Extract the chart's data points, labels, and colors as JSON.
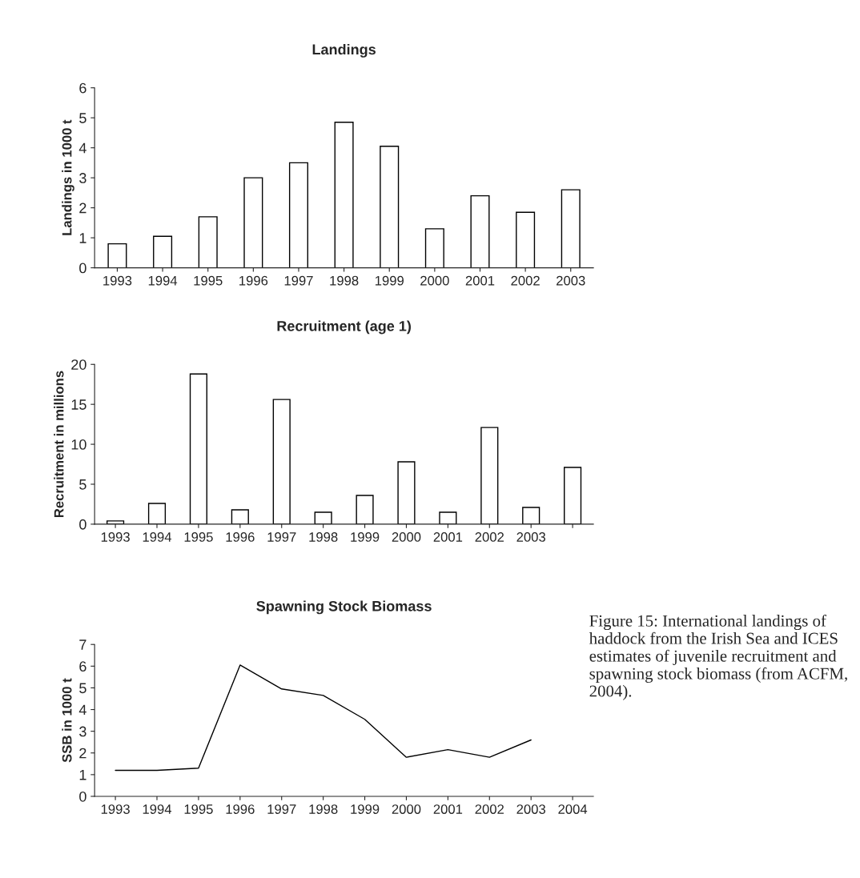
{
  "chart_data": [
    {
      "type": "bar",
      "title": "Landings",
      "ylabel": "Landings in 1000 t",
      "categories": [
        "1993",
        "1994",
        "1995",
        "1996",
        "1997",
        "1998",
        "1999",
        "2000",
        "2001",
        "2002",
        "2003"
      ],
      "series": [
        {
          "color": "#ffffff",
          "values": [
            0.8,
            1.05,
            1.7,
            3.0,
            3.5,
            4.85,
            4.05,
            1.3,
            2.4,
            1.85,
            2.6
          ]
        }
      ],
      "ylim": [
        0,
        6
      ],
      "yticks": [
        0,
        1,
        2,
        3,
        4,
        5,
        6
      ],
      "grid": false
    },
    {
      "type": "bar",
      "title": "Recruitment (age 1)",
      "ylabel": "Recruitment in millions",
      "categories": [
        "1993",
        "1994",
        "1995",
        "1996",
        "1997",
        "1998",
        "1999",
        "2000",
        "2001",
        "2002",
        "2003",
        null
      ],
      "series": [
        {
          "color": "#ffffff",
          "values": [
            0.4,
            2.6,
            18.8,
            1.8,
            15.6,
            1.5,
            3.6,
            7.8,
            1.5,
            12.1,
            2.1,
            7.1
          ]
        }
      ],
      "ylim": [
        0,
        20
      ],
      "yticks": [
        0,
        5,
        10,
        15,
        20
      ],
      "grid": false
    },
    {
      "type": "line",
      "title": "Spawning Stock Biomass",
      "ylabel": "SSB in 1000 t",
      "categories": [
        "1993",
        "1994",
        "1995",
        "1996",
        "1997",
        "1998",
        "1999",
        "2000",
        "2001",
        "2002",
        "2003",
        "2004"
      ],
      "series": [
        {
          "color": "#000000",
          "values": [
            1.2,
            1.2,
            1.3,
            6.05,
            4.95,
            4.65,
            3.55,
            1.8,
            2.15,
            1.8,
            2.6,
            null
          ]
        }
      ],
      "ylim": [
        0,
        7
      ],
      "yticks": [
        0,
        1,
        2,
        3,
        4,
        5,
        6,
        7
      ],
      "grid": false,
      "marker": "none",
      "line_style": "solid",
      "annotations": [
        "Figure 15: International landings of haddock from the Irish Sea and ICES estimates of juvenile recruitment and spawning stock biomass (from ACFM, 2004)."
      ]
    }
  ]
}
